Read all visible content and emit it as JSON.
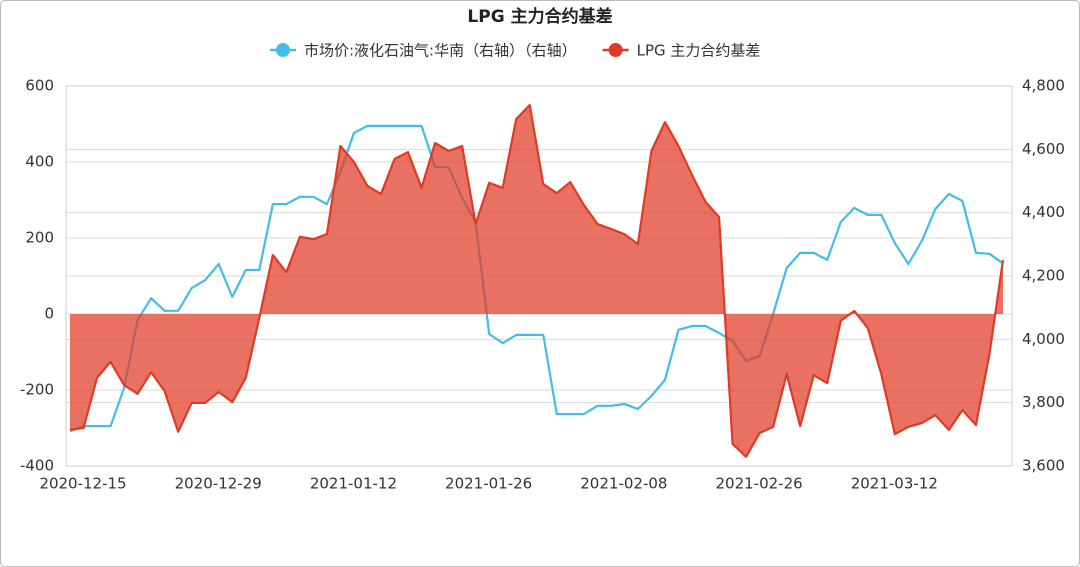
{
  "chart_data": {
    "type": "line",
    "title": "LPG 主力合约基差",
    "categories": [
      "2020-12-15",
      null,
      null,
      null,
      null,
      null,
      null,
      null,
      null,
      null,
      "2020-12-29",
      null,
      null,
      null,
      null,
      null,
      null,
      null,
      null,
      null,
      "2021-01-12",
      null,
      null,
      null,
      null,
      null,
      null,
      null,
      null,
      null,
      "2021-01-26",
      null,
      null,
      null,
      null,
      null,
      null,
      null,
      null,
      null,
      "2021-02-08",
      null,
      null,
      null,
      null,
      null,
      null,
      null,
      null,
      null,
      "2021-02-26",
      null,
      null,
      null,
      null,
      null,
      null,
      null,
      null,
      null,
      "2021-03-12",
      null,
      null,
      null,
      null,
      null,
      null,
      null,
      null,
      null
    ],
    "series": [
      {
        "name": "市场价:液化石油气:华南（右轴）（右轴）",
        "color": "#41bde8",
        "axis": "y2",
        "values": [
          3710,
          3726,
          3726,
          3726,
          3846,
          4061,
          4130,
          4090,
          4090,
          4162,
          4187,
          4238,
          4134,
          4219,
          4219,
          4427,
          4427,
          4450,
          4450,
          4427,
          4528,
          4652,
          4674,
          4674,
          4674,
          4674,
          4674,
          4544,
          4544,
          4446,
          4370,
          4017,
          3988,
          4014,
          4014,
          4014,
          3764,
          3764,
          3764,
          3790,
          3790,
          3796,
          3780,
          3821,
          3872,
          4030,
          4042,
          4042,
          4020,
          3995,
          3932,
          3947,
          4080,
          4225,
          4273,
          4273,
          4251,
          4370,
          4415,
          4393,
          4393,
          4304,
          4238,
          4311,
          4412,
          4459,
          4437,
          4273,
          4270,
          4240
        ]
      },
      {
        "name": "LPG 主力合约基差",
        "color": "#e03a26",
        "area": true,
        "values": [
          -305,
          -300,
          -168,
          -126,
          -187,
          -210,
          -153,
          -203,
          -310,
          -234,
          -234,
          -205,
          -232,
          -168,
          -10,
          155,
          110,
          203,
          197,
          210,
          442,
          400,
          337,
          316,
          408,
          426,
          332,
          450,
          429,
          442,
          237,
          345,
          332,
          513,
          550,
          342,
          318,
          347,
          287,
          237,
          224,
          210,
          184,
          429,
          505,
          442,
          366,
          295,
          255,
          -342,
          -376,
          -313,
          -297,
          -158,
          -295,
          -161,
          -182,
          -18,
          8,
          -37,
          -158,
          -316,
          -297,
          -287,
          -266,
          -305,
          -253,
          -292,
          -105,
          142
        ]
      }
    ],
    "ylim": [
      -400,
      600
    ],
    "yticks": [
      -400,
      -200,
      0,
      200,
      400,
      600
    ],
    "y2lim": [
      3600,
      4800
    ],
    "y2ticks": [
      {
        "value": 3600,
        "label": "3,600"
      },
      {
        "value": 3800,
        "label": "3,800"
      },
      {
        "value": 4000,
        "label": "4,000"
      },
      {
        "value": 4200,
        "label": "4,200"
      },
      {
        "value": 4400,
        "label": "4,400"
      },
      {
        "value": 4600,
        "label": "4,600"
      },
      {
        "value": 4800,
        "label": "4,800"
      }
    ],
    "grid": true
  }
}
